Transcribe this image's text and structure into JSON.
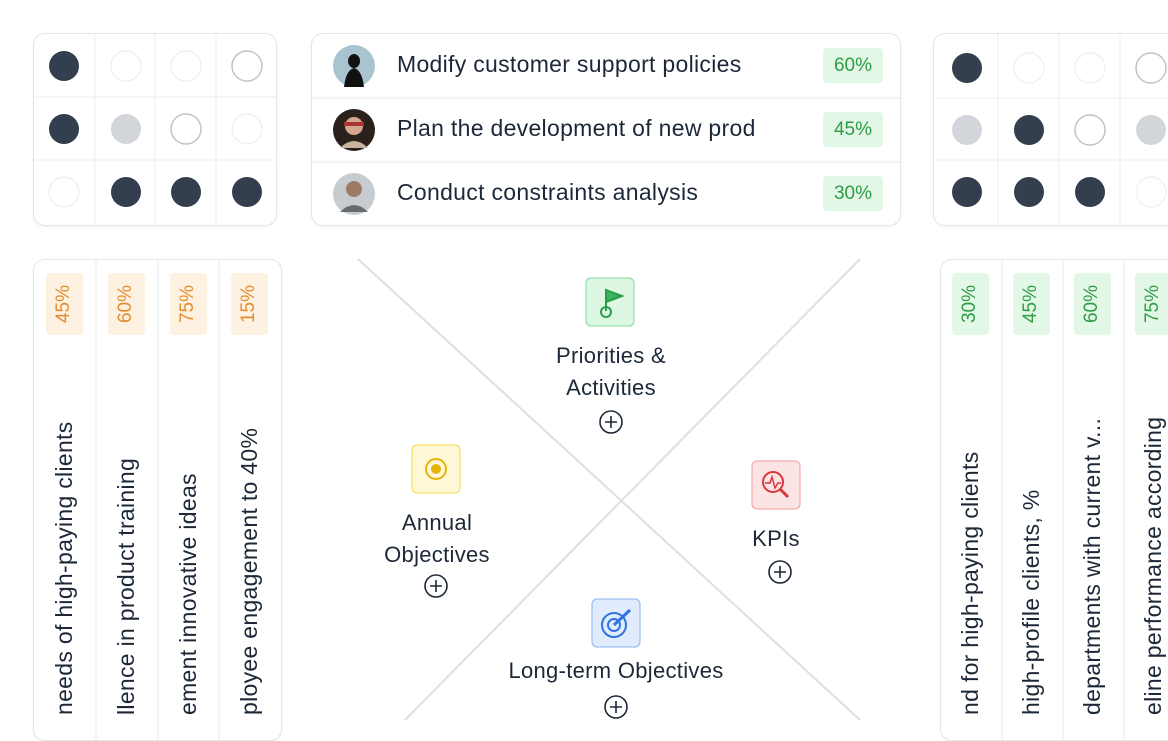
{
  "task_list": {
    "rows": [
      {
        "title": "Modify customer support policies",
        "percent": "60%"
      },
      {
        "title": "Plan the development of new prod",
        "percent": "45%"
      },
      {
        "title": "Conduct constraints analysis",
        "percent": "30%"
      }
    ]
  },
  "left_panel": {
    "items": [
      {
        "percent": "45%",
        "label": "needs of high-paying clients"
      },
      {
        "percent": "60%",
        "label": "llence in product training"
      },
      {
        "percent": "75%",
        "label": "ement innovative ideas"
      },
      {
        "percent": "15%",
        "label": "ployee engagement to 40%"
      }
    ]
  },
  "matrix": {
    "top": {
      "label": "Priorities & Activities"
    },
    "left": {
      "label": "Annual Objectives"
    },
    "right": {
      "label": "KPIs"
    },
    "bottom": {
      "label": "Long-term Objectives"
    }
  },
  "right_panel": {
    "items": [
      {
        "percent": "30%",
        "label": "nd for high-paying clients"
      },
      {
        "percent": "45%",
        "label": "high-profile clients, %"
      },
      {
        "percent": "60%",
        "label": "departments with current v..."
      },
      {
        "percent": "75%",
        "label": "eline performance according"
      }
    ]
  }
}
